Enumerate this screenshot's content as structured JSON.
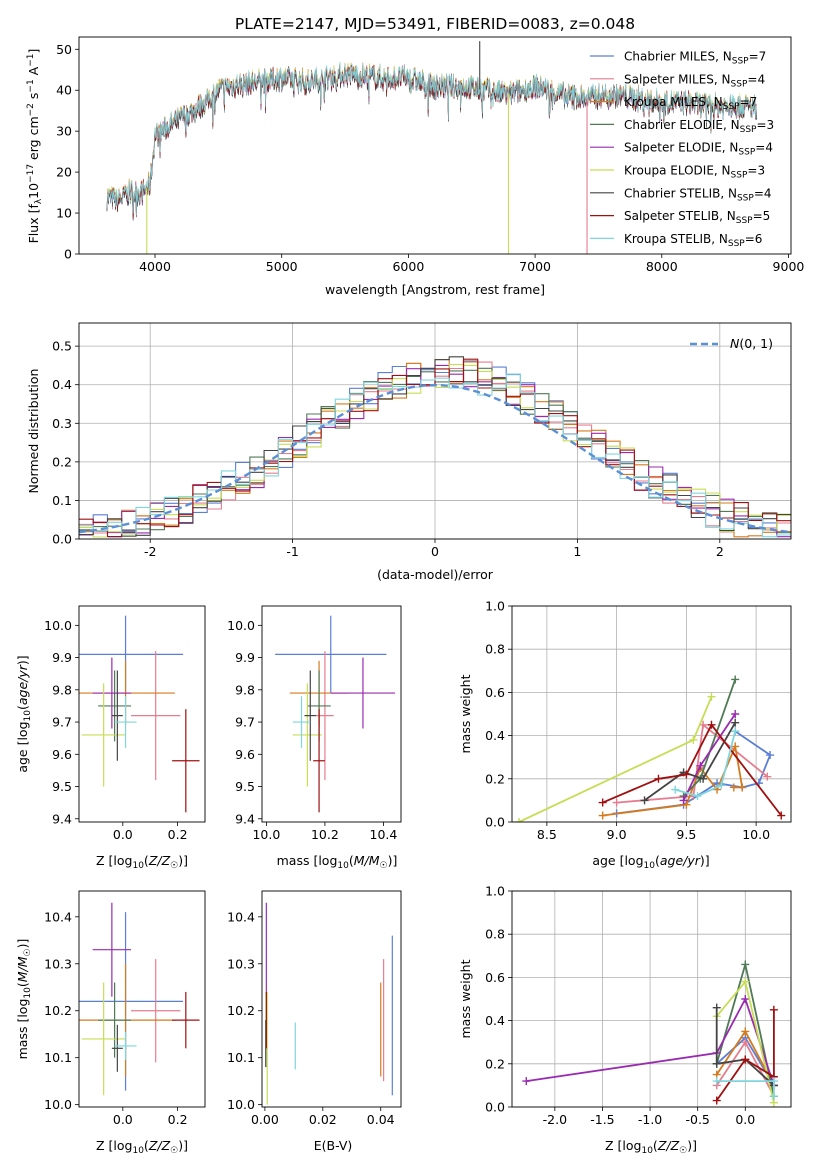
{
  "title": "PLATE=2147, MJD=53491, FIBERID=0083, z=0.048",
  "colors": {
    "Chabrier MILES": "#5b7fd6",
    "Salpeter MILES": "#e67d8f",
    "Kroupa MILES": "#d67a1e",
    "Chabrier ELODIE": "#4f7a55",
    "Salpeter ELODIE": "#9a2bb0",
    "Kroupa ELODIE": "#c8dd55",
    "Chabrier STELIB": "#444444",
    "Salpeter STELIB": "#a01010",
    "Kroupa STELIB": "#7fd6de",
    "normal": "#5b8fd6"
  },
  "chart_data": [
    {
      "id": "spectrum",
      "type": "line",
      "xlabel": "wavelength [Angstrom, rest frame]",
      "ylabel": "Flux [f_λ 10^-17 erg cm^-2 s^-1 A^-1]",
      "xlim": [
        3400,
        9020
      ],
      "ylim": [
        0,
        53
      ],
      "xticks": [
        4000,
        5000,
        6000,
        7000,
        8000,
        9000
      ],
      "yticks": [
        0,
        10,
        20,
        30,
        40,
        50
      ],
      "legend_position": "top-right",
      "legend": [
        {
          "label": "Chabrier MILES, N",
          "sub": "SSP",
          "suffix": "=7",
          "key": "Chabrier MILES"
        },
        {
          "label": "Salpeter MILES, N",
          "sub": "SSP",
          "suffix": "=4",
          "key": "Salpeter MILES"
        },
        {
          "label": "Kroupa MILES, N",
          "sub": "SSP",
          "suffix": "=7",
          "key": "Kroupa MILES"
        },
        {
          "label": "Chabrier ELODIE, N",
          "sub": "SSP",
          "suffix": "=3",
          "key": "Chabrier ELODIE"
        },
        {
          "label": "Salpeter ELODIE, N",
          "sub": "SSP",
          "suffix": "=4",
          "key": "Salpeter ELODIE"
        },
        {
          "label": "Kroupa ELODIE, N",
          "sub": "SSP",
          "suffix": "=3",
          "key": "Kroupa ELODIE"
        },
        {
          "label": "Chabrier STELIB, N",
          "sub": "SSP",
          "suffix": "=4",
          "key": "Chabrier STELIB"
        },
        {
          "label": "Salpeter STELIB, N",
          "sub": "SSP",
          "suffix": "=5",
          "key": "Salpeter STELIB"
        },
        {
          "label": "Kroupa STELIB, N",
          "sub": "SSP",
          "suffix": "=6",
          "key": "Kroupa STELIB"
        }
      ],
      "continuum": [
        [
          3620,
          14
        ],
        [
          3700,
          13
        ],
        [
          3800,
          15
        ],
        [
          3900,
          15
        ],
        [
          3960,
          17
        ],
        [
          4000,
          29
        ],
        [
          4100,
          31
        ],
        [
          4200,
          33
        ],
        [
          4300,
          35
        ],
        [
          4400,
          37
        ],
        [
          4500,
          40
        ],
        [
          4600,
          41
        ],
        [
          4800,
          42
        ],
        [
          5000,
          43
        ],
        [
          5200,
          42
        ],
        [
          5500,
          44
        ],
        [
          5800,
          43
        ],
        [
          6000,
          43
        ],
        [
          6200,
          41
        ],
        [
          6400,
          41
        ],
        [
          6600,
          40
        ],
        [
          6800,
          39
        ],
        [
          7000,
          41
        ],
        [
          7200,
          39
        ],
        [
          7400,
          38
        ],
        [
          7600,
          39
        ],
        [
          7800,
          38
        ],
        [
          8000,
          37
        ],
        [
          8200,
          37
        ],
        [
          8400,
          36
        ],
        [
          8600,
          36
        ],
        [
          8750,
          36
        ]
      ],
      "spikes": [
        {
          "x": 3935,
          "ymin": 0,
          "key": "Kroupa ELODIE"
        },
        {
          "x": 6790,
          "ymin": 0,
          "key": "Kroupa ELODIE"
        },
        {
          "x": 7410,
          "ymin": 0,
          "key": "Salpeter MILES"
        },
        {
          "x": 6563,
          "ymax": 52,
          "key": "Chabrier STELIB"
        }
      ]
    },
    {
      "id": "residuals",
      "type": "histogram",
      "xlabel": "(data-model)/error",
      "ylabel": "Normed distribution",
      "xlim": [
        -2.5,
        2.5
      ],
      "ylim": [
        0,
        0.56
      ],
      "xticks": [
        -2,
        -1,
        0,
        1,
        2
      ],
      "yticks": [
        0.0,
        0.1,
        0.2,
        0.3,
        0.4,
        0.5
      ],
      "bin_width": 0.1,
      "bin_start": -2.5,
      "grid": true,
      "legend_position": "top-right",
      "normal_label": "N(0, 1)"
    },
    {
      "id": "age_vs_Z",
      "type": "errorbar",
      "xlabel": "Z [log10(Z/Z☉)]",
      "ylabel": "age  [log10(age/yr)]",
      "xlim": [
        -0.16,
        0.3
      ],
      "ylim": [
        9.39,
        10.06
      ],
      "xticks": [
        -0.0,
        0.2
      ],
      "xticklabels": [
        "0.0",
        "0.2"
      ],
      "yticks": [
        9.4,
        9.5,
        9.6,
        9.7,
        9.8,
        9.9,
        10.0
      ],
      "points": [
        {
          "key": "Chabrier MILES",
          "x": 0.01,
          "xerr": 0.21,
          "y": 9.91,
          "yerr": 0.12
        },
        {
          "key": "Salpeter MILES",
          "x": 0.12,
          "xerr": 0.09,
          "y": 9.72,
          "yerr": 0.2
        },
        {
          "key": "Kroupa MILES",
          "x": 0.01,
          "xerr": 0.18,
          "y": 9.79,
          "yerr": 0.1
        },
        {
          "key": "Chabrier ELODIE",
          "x": -0.03,
          "xerr": 0.06,
          "y": 9.75,
          "yerr": 0.11
        },
        {
          "key": "Salpeter ELODIE",
          "x": -0.04,
          "xerr": 0.07,
          "y": 9.79,
          "yerr": 0.11
        },
        {
          "key": "Kroupa ELODIE",
          "x": -0.07,
          "xerr": 0.08,
          "y": 9.66,
          "yerr": 0.16
        },
        {
          "key": "Chabrier STELIB",
          "x": -0.02,
          "xerr": 0.02,
          "y": 9.72,
          "yerr": 0.14
        },
        {
          "key": "Salpeter STELIB",
          "x": 0.23,
          "xerr": 0.05,
          "y": 9.58,
          "yerr": 0.16
        },
        {
          "key": "Kroupa STELIB",
          "x": 0.01,
          "xerr": 0.04,
          "y": 9.7,
          "yerr": 0.08
        }
      ]
    },
    {
      "id": "age_vs_mass",
      "type": "errorbar",
      "xlabel": "mass [log10(M/M☉)]",
      "xlim": [
        9.985,
        10.46
      ],
      "ylim": [
        9.39,
        10.06
      ],
      "xticks": [
        10.0,
        10.2,
        10.4
      ],
      "yticks": [
        9.4,
        9.5,
        9.6,
        9.7,
        9.8,
        9.9,
        10.0
      ],
      "points": [
        {
          "key": "Chabrier MILES",
          "x": 10.22,
          "xerr": 0.19,
          "y": 9.91,
          "yerr": 0.12
        },
        {
          "key": "Salpeter MILES",
          "x": 10.2,
          "xerr": 0.03,
          "y": 9.72,
          "yerr": 0.2
        },
        {
          "key": "Kroupa MILES",
          "x": 10.18,
          "xerr": 0.1,
          "y": 9.79,
          "yerr": 0.1
        },
        {
          "key": "Chabrier ELODIE",
          "x": 10.18,
          "xerr": 0.04,
          "y": 9.75,
          "yerr": 0.11
        },
        {
          "key": "Salpeter ELODIE",
          "x": 10.33,
          "xerr": 0.11,
          "y": 9.79,
          "yerr": 0.11
        },
        {
          "key": "Kroupa ELODIE",
          "x": 10.14,
          "xerr": 0.05,
          "y": 9.66,
          "yerr": 0.16
        },
        {
          "key": "Chabrier STELIB",
          "x": 10.15,
          "xerr": 0.02,
          "y": 9.72,
          "yerr": 0.14
        },
        {
          "key": "Salpeter STELIB",
          "x": 10.18,
          "xerr": 0.02,
          "y": 9.58,
          "yerr": 0.16
        },
        {
          "key": "Kroupa STELIB",
          "x": 10.12,
          "xerr": 0.03,
          "y": 9.7,
          "yerr": 0.08
        }
      ]
    },
    {
      "id": "weight_vs_age",
      "type": "line",
      "xlabel": "age  [log10(age/yr)]",
      "ylabel": "mass weight",
      "xlim": [
        8.25,
        10.25
      ],
      "ylim": [
        0,
        1.0
      ],
      "xticks": [
        8.5,
        9.0,
        9.5,
        10.0
      ],
      "yticks": [
        0.0,
        0.2,
        0.4,
        0.6,
        0.8,
        1.0
      ],
      "grid": true,
      "series": [
        {
          "key": "Chabrier MILES",
          "points": [
            [
              9.0,
              0.04
            ],
            [
              9.48,
              0.08
            ],
            [
              9.72,
              0.18
            ],
            [
              9.9,
              0.16
            ],
            [
              10.02,
              0.18
            ],
            [
              10.1,
              0.31
            ],
            [
              9.85,
              0.42
            ]
          ]
        },
        {
          "key": "Salpeter MILES",
          "points": [
            [
              9.0,
              0.09
            ],
            [
              9.55,
              0.12
            ],
            [
              9.62,
              0.45
            ],
            [
              10.08,
              0.21
            ]
          ]
        },
        {
          "key": "Kroupa MILES",
          "points": [
            [
              8.9,
              0.03
            ],
            [
              9.5,
              0.08
            ],
            [
              9.6,
              0.25
            ],
            [
              9.72,
              0.15
            ],
            [
              9.85,
              0.35
            ],
            [
              9.9,
              0.16
            ],
            [
              9.84,
              0.16
            ]
          ]
        },
        {
          "key": "Chabrier ELODIE",
          "points": [
            [
              9.48,
              0.12
            ],
            [
              9.6,
              0.2
            ],
            [
              9.85,
              0.66
            ]
          ]
        },
        {
          "key": "Salpeter ELODIE",
          "points": [
            [
              9.48,
              0.1
            ],
            [
              9.6,
              0.26
            ],
            [
              9.85,
              0.5
            ]
          ]
        },
        {
          "key": "Kroupa ELODIE",
          "points": [
            [
              8.3,
              0.0
            ],
            [
              9.55,
              0.38
            ],
            [
              9.68,
              0.58
            ]
          ]
        },
        {
          "key": "Chabrier STELIB",
          "points": [
            [
              9.2,
              0.1
            ],
            [
              9.48,
              0.23
            ],
            [
              9.62,
              0.2
            ],
            [
              9.85,
              0.46
            ]
          ]
        },
        {
          "key": "Salpeter STELIB",
          "points": [
            [
              8.9,
              0.09
            ],
            [
              9.3,
              0.2
            ],
            [
              9.5,
              0.22
            ],
            [
              9.68,
              0.45
            ],
            [
              10.18,
              0.03
            ]
          ]
        },
        {
          "key": "Kroupa STELIB",
          "points": [
            [
              9.42,
              0.15
            ],
            [
              9.58,
              0.12
            ],
            [
              9.75,
              0.17
            ],
            [
              9.85,
              0.42
            ]
          ]
        }
      ]
    },
    {
      "id": "mass_vs_Z",
      "type": "errorbar",
      "xlabel": "Z [log10(Z/Z☉)]",
      "ylabel": "mass [log10(M/M☉)]",
      "xlim": [
        -0.16,
        0.3
      ],
      "ylim": [
        9.995,
        10.455
      ],
      "xticks": [
        -0.0,
        0.2
      ],
      "xticklabels": [
        "0.0",
        "0.2"
      ],
      "yticks": [
        10.0,
        10.1,
        10.2,
        10.3,
        10.4
      ],
      "points": [
        {
          "key": "Chabrier MILES",
          "x": 0.01,
          "xerr": 0.21,
          "y": 10.22,
          "yerr": 0.19
        },
        {
          "key": "Salpeter MILES",
          "x": 0.12,
          "xerr": 0.09,
          "y": 10.2,
          "yerr": 0.11
        },
        {
          "key": "Kroupa MILES",
          "x": 0.01,
          "xerr": 0.18,
          "y": 10.18,
          "yerr": 0.12
        },
        {
          "key": "Chabrier ELODIE",
          "x": -0.03,
          "xerr": 0.06,
          "y": 10.18,
          "yerr": 0.08
        },
        {
          "key": "Salpeter ELODIE",
          "x": -0.04,
          "xerr": 0.07,
          "y": 10.33,
          "yerr": 0.1
        },
        {
          "key": "Kroupa ELODIE",
          "x": -0.07,
          "xerr": 0.08,
          "y": 10.14,
          "yerr": 0.12
        },
        {
          "key": "Chabrier STELIB",
          "x": -0.02,
          "xerr": 0.02,
          "y": 10.12,
          "yerr": 0.05
        },
        {
          "key": "Salpeter STELIB",
          "x": 0.23,
          "xerr": 0.05,
          "y": 10.18,
          "yerr": 0.06
        },
        {
          "key": "Kroupa STELIB",
          "x": 0.01,
          "xerr": 0.04,
          "y": 10.125,
          "yerr": 0.03
        }
      ]
    },
    {
      "id": "mass_vs_ebv",
      "type": "errorbar",
      "xlabel": "E(B-V)",
      "xlim": [
        -0.001,
        0.047
      ],
      "ylim": [
        9.995,
        10.455
      ],
      "xticks": [
        0.0,
        0.02,
        0.04
      ],
      "xticklabels": [
        "0.00",
        "0.02",
        "0.04"
      ],
      "yticks": [
        10.0,
        10.1,
        10.2,
        10.3,
        10.4
      ],
      "points": [
        {
          "key": "Chabrier MILES",
          "x": 0.044,
          "y": 10.19,
          "yerr": 0.17
        },
        {
          "key": "Salpeter MILES",
          "x": 0.041,
          "y": 10.18,
          "yerr": 0.13
        },
        {
          "key": "Kroupa MILES",
          "x": 0.04,
          "y": 10.16,
          "yerr": 0.1
        },
        {
          "key": "Chabrier ELODIE",
          "x": 0.0005,
          "y": 10.18,
          "yerr": 0.06
        },
        {
          "key": "Salpeter ELODIE",
          "x": 0.0005,
          "y": 10.33,
          "yerr": 0.1
        },
        {
          "key": "Kroupa ELODIE",
          "x": 0.0008,
          "y": 10.12,
          "yerr": 0.12
        },
        {
          "key": "Chabrier STELIB",
          "x": 0.0003,
          "y": 10.13,
          "yerr": 0.05
        },
        {
          "key": "Salpeter STELIB",
          "x": 0.0005,
          "y": 10.18,
          "yerr": 0.06
        },
        {
          "key": "Kroupa STELIB",
          "x": 0.0105,
          "y": 10.125,
          "yerr": 0.05
        }
      ]
    },
    {
      "id": "weight_vs_Z",
      "type": "line",
      "xlabel": "Z [log10(Z/Z☉)]",
      "ylabel": "mass weight",
      "xlim": [
        -2.45,
        0.48
      ],
      "ylim": [
        0,
        1.0
      ],
      "xticks": [
        -2.0,
        -1.5,
        -1.0,
        -0.5,
        0.0
      ],
      "yticks": [
        0.0,
        0.2,
        0.4,
        0.6,
        0.8,
        1.0
      ],
      "grid": true,
      "series": [
        {
          "key": "Chabrier MILES",
          "points": [
            [
              -0.3,
              0.2
            ],
            [
              0.0,
              0.32
            ],
            [
              0.3,
              0.1
            ]
          ]
        },
        {
          "key": "Salpeter MILES",
          "points": [
            [
              -0.3,
              0.1
            ],
            [
              0.0,
              0.3
            ],
            [
              0.3,
              0.05
            ]
          ]
        },
        {
          "key": "Kroupa MILES",
          "points": [
            [
              -0.3,
              0.15
            ],
            [
              0.0,
              0.35
            ],
            [
              0.3,
              0.1
            ]
          ]
        },
        {
          "key": "Chabrier ELODIE",
          "points": [
            [
              -0.3,
              0.2
            ],
            [
              0.0,
              0.66
            ],
            [
              0.3,
              0.05
            ]
          ]
        },
        {
          "key": "Salpeter ELODIE",
          "points": [
            [
              -2.3,
              0.12
            ],
            [
              -0.3,
              0.25
            ],
            [
              0.0,
              0.5
            ],
            [
              0.3,
              0.1
            ]
          ]
        },
        {
          "key": "Kroupa ELODIE",
          "points": [
            [
              -0.3,
              0.42
            ],
            [
              0.0,
              0.58
            ],
            [
              0.3,
              0.02
            ]
          ]
        },
        {
          "key": "Chabrier STELIB",
          "points": [
            [
              -0.3,
              0.46
            ],
            [
              -0.3,
              0.2
            ],
            [
              0.0,
              0.22
            ],
            [
              0.3,
              0.1
            ]
          ]
        },
        {
          "key": "Salpeter STELIB",
          "points": [
            [
              -0.3,
              0.03
            ],
            [
              0.0,
              0.22
            ],
            [
              0.3,
              0.14
            ],
            [
              0.3,
              0.45
            ]
          ]
        },
        {
          "key": "Kroupa STELIB",
          "points": [
            [
              -0.3,
              0.12
            ],
            [
              0.3,
              0.12
            ],
            [
              0.3,
              0.05
            ]
          ]
        }
      ]
    }
  ]
}
